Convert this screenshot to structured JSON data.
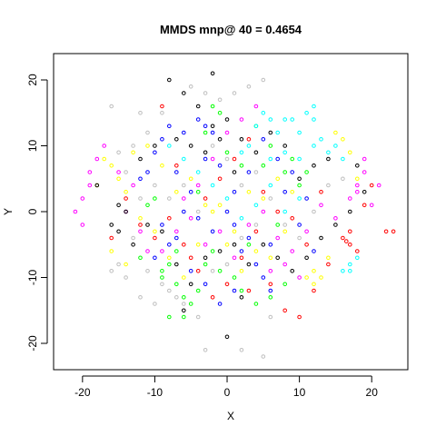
{
  "chart_data": {
    "type": "scatter",
    "title": "MMDS mnp@ 40 = 0.4654",
    "xlabel": "X",
    "ylabel": "Y",
    "xlim": [
      -24,
      25
    ],
    "ylim": [
      -24,
      24
    ],
    "xticks": [
      -20,
      -10,
      0,
      10,
      20
    ],
    "yticks": [
      -20,
      -10,
      0,
      10,
      20
    ],
    "xtick_labels": [
      "-20",
      "-10",
      "0",
      "10",
      "20"
    ],
    "ytick_labels": [
      "-20",
      "-10",
      "0",
      "10",
      "20"
    ],
    "marker": "open-circle",
    "grid": false,
    "legend": "none",
    "series": [
      {
        "color": "#ff0000",
        "points": [
          [
            -12,
            -2
          ],
          [
            -10,
            -4
          ],
          [
            -8,
            -1
          ],
          [
            -6,
            -5
          ],
          [
            -4,
            -9
          ],
          [
            -2,
            -13
          ],
          [
            0,
            -11
          ],
          [
            2,
            -7
          ],
          [
            4,
            -3
          ],
          [
            6,
            -11
          ],
          [
            8,
            -15
          ],
          [
            10,
            -16
          ],
          [
            12,
            -12
          ],
          [
            14,
            -8
          ],
          [
            16,
            -4
          ],
          [
            17,
            -5
          ],
          [
            18,
            -6
          ],
          [
            17,
            -3
          ],
          [
            16.5,
            -4.5
          ],
          [
            22,
            -3
          ],
          [
            23,
            -3
          ],
          [
            -3,
            2
          ],
          [
            -1,
            5
          ],
          [
            1,
            8
          ],
          [
            3,
            11
          ],
          [
            5,
            3
          ],
          [
            7,
            0
          ],
          [
            9,
            -1
          ],
          [
            -14,
            2
          ],
          [
            -16,
            -4
          ],
          [
            -7,
            7
          ],
          [
            -9,
            16
          ],
          [
            -5,
            -7
          ],
          [
            3,
            -12
          ],
          [
            11,
            -5
          ],
          [
            13,
            3
          ],
          [
            19,
            1
          ],
          [
            20,
            4
          ]
        ]
      },
      {
        "color": "#00ff00",
        "points": [
          [
            -8,
            -8
          ],
          [
            -9,
            -9
          ],
          [
            -7,
            -11
          ],
          [
            -6,
            -13
          ],
          [
            -5,
            -14
          ],
          [
            -8,
            -16
          ],
          [
            -6,
            -16
          ],
          [
            -4,
            -12
          ],
          [
            -3,
            -8
          ],
          [
            -2,
            -6
          ],
          [
            -1,
            -9
          ],
          [
            1,
            -10
          ],
          [
            2,
            -12
          ],
          [
            4,
            -14
          ],
          [
            6,
            -13
          ],
          [
            8,
            -11
          ],
          [
            -2,
            16
          ],
          [
            -1,
            15
          ],
          [
            -3,
            12
          ],
          [
            0,
            9
          ],
          [
            2,
            7
          ],
          [
            4,
            13
          ],
          [
            6,
            10
          ],
          [
            8,
            6
          ],
          [
            10,
            4
          ],
          [
            -10,
            2
          ],
          [
            -12,
            -7
          ],
          [
            -11,
            1
          ],
          [
            -4,
            3
          ],
          [
            3,
            -5
          ],
          [
            7,
            -2
          ],
          [
            9,
            8
          ],
          [
            11,
            6
          ],
          [
            5,
            7
          ],
          [
            -7,
            -6
          ],
          [
            -9,
            -10
          ]
        ]
      },
      {
        "color": "#0000ff",
        "points": [
          [
            -4,
            14
          ],
          [
            -3,
            13
          ],
          [
            -2,
            12
          ],
          [
            -6,
            12
          ],
          [
            -8,
            13
          ],
          [
            -9,
            11
          ],
          [
            -11,
            6
          ],
          [
            -12,
            5
          ],
          [
            -10,
            9
          ],
          [
            -7,
            6
          ],
          [
            -5,
            3
          ],
          [
            -6,
            0
          ],
          [
            -4,
            -1
          ],
          [
            -2,
            -3
          ],
          [
            0,
            0
          ],
          [
            1,
            -2
          ],
          [
            2,
            -6
          ],
          [
            3,
            -4
          ],
          [
            4,
            -8
          ],
          [
            5,
            -10
          ],
          [
            6,
            -12
          ],
          [
            -1,
            -14
          ],
          [
            1,
            -12
          ],
          [
            -3,
            -11
          ],
          [
            -5,
            -9
          ],
          [
            -7,
            -4
          ],
          [
            -9,
            -2
          ],
          [
            8,
            3
          ],
          [
            10,
            -2
          ],
          [
            12,
            -6
          ],
          [
            11,
            2
          ],
          [
            9,
            6
          ],
          [
            7,
            8
          ],
          [
            5,
            11
          ],
          [
            3,
            6
          ],
          [
            1,
            3
          ],
          [
            -1,
            7
          ],
          [
            -3,
            8
          ],
          [
            -8,
            -5
          ],
          [
            -10,
            -7
          ],
          [
            6,
            -5
          ]
        ]
      },
      {
        "color": "#00ffff",
        "points": [
          [
            5,
            15
          ],
          [
            6,
            14
          ],
          [
            7,
            12
          ],
          [
            8,
            14
          ],
          [
            9,
            14
          ],
          [
            10,
            12
          ],
          [
            11,
            15
          ],
          [
            12,
            16
          ],
          [
            12,
            14
          ],
          [
            13,
            11
          ],
          [
            14,
            9
          ],
          [
            15,
            10
          ],
          [
            16,
            8
          ],
          [
            4,
            13
          ],
          [
            3,
            10
          ],
          [
            2,
            9
          ],
          [
            6,
            8
          ],
          [
            8,
            9
          ],
          [
            10,
            8
          ],
          [
            12,
            10
          ],
          [
            17,
            -8
          ],
          [
            17,
            -9
          ],
          [
            18,
            -7
          ],
          [
            16,
            -9
          ],
          [
            -2,
            4
          ],
          [
            -4,
            6
          ],
          [
            0,
            2
          ],
          [
            2,
            -1
          ],
          [
            4,
            1
          ],
          [
            6,
            4
          ],
          [
            8,
            0
          ],
          [
            10,
            2
          ],
          [
            -6,
            8
          ],
          [
            -8,
            10
          ]
        ]
      },
      {
        "color": "#ff00ff",
        "points": [
          [
            -21,
            0
          ],
          [
            -20,
            2
          ],
          [
            -19,
            4
          ],
          [
            -19,
            6
          ],
          [
            -18,
            8
          ],
          [
            -17,
            10
          ],
          [
            -20,
            -2
          ],
          [
            -13,
            4
          ],
          [
            -12,
            -3
          ],
          [
            -11,
            -6
          ],
          [
            -9,
            -6
          ],
          [
            -7,
            -3
          ],
          [
            -5,
            -1
          ],
          [
            -3,
            -5
          ],
          [
            -1,
            -3
          ],
          [
            1,
            -7
          ],
          [
            3,
            -2
          ],
          [
            5,
            0
          ],
          [
            7,
            -4
          ],
          [
            9,
            -6
          ],
          [
            11,
            -3
          ],
          [
            13,
            1
          ],
          [
            15,
            -1
          ],
          [
            17,
            2
          ],
          [
            18,
            4
          ],
          [
            19,
            6
          ],
          [
            19,
            8
          ],
          [
            18,
            3
          ],
          [
            20,
            1
          ],
          [
            21,
            4
          ],
          [
            8,
            -8
          ],
          [
            10,
            -10
          ],
          [
            6,
            -9
          ],
          [
            -6,
            2
          ],
          [
            -4,
            4
          ],
          [
            -2,
            8
          ],
          [
            0,
            12
          ],
          [
            2,
            14
          ],
          [
            4,
            16
          ],
          [
            -15,
            6
          ],
          [
            -14,
            0
          ]
        ]
      },
      {
        "color": "#ffff00",
        "points": [
          [
            -17,
            8
          ],
          [
            -16,
            7
          ],
          [
            -15,
            5
          ],
          [
            -14,
            3
          ],
          [
            -13,
            9
          ],
          [
            -11,
            10
          ],
          [
            -9,
            7
          ],
          [
            -7,
            3
          ],
          [
            -5,
            5
          ],
          [
            -3,
            1
          ],
          [
            -1,
            1
          ],
          [
            1,
            -3
          ],
          [
            3,
            3
          ],
          [
            5,
            2
          ],
          [
            7,
            5
          ],
          [
            9,
            3
          ],
          [
            11,
            -10
          ],
          [
            12,
            -9
          ],
          [
            12,
            -11
          ],
          [
            13,
            -10
          ],
          [
            14,
            -7
          ],
          [
            15,
            12
          ],
          [
            16,
            11
          ],
          [
            17,
            9
          ],
          [
            18,
            5
          ],
          [
            -12,
            -1
          ],
          [
            -10,
            -3
          ],
          [
            -8,
            -7
          ],
          [
            -6,
            -10
          ],
          [
            -4,
            -5
          ],
          [
            -2,
            0
          ],
          [
            0,
            -5
          ],
          [
            2,
            -9
          ],
          [
            4,
            -6
          ],
          [
            6,
            -7
          ],
          [
            8,
            -3
          ],
          [
            -18,
            4
          ],
          [
            -16,
            -6
          ],
          [
            -14,
            -8
          ]
        ]
      },
      {
        "color": "#000000",
        "points": [
          [
            -8,
            20
          ],
          [
            -6,
            18
          ],
          [
            -2,
            21
          ],
          [
            -4,
            16
          ],
          [
            -1,
            11
          ],
          [
            1,
            6
          ],
          [
            -3,
            9
          ],
          [
            -5,
            10
          ],
          [
            -7,
            11
          ],
          [
            -10,
            10
          ],
          [
            -12,
            8
          ],
          [
            -14,
            0
          ],
          [
            -16,
            -2
          ],
          [
            -15,
            -3
          ],
          [
            -13,
            -5
          ],
          [
            -11,
            -2
          ],
          [
            -9,
            -3
          ],
          [
            -7,
            -8
          ],
          [
            -5,
            -11
          ],
          [
            -3,
            -7
          ],
          [
            -1,
            -6
          ],
          [
            1,
            -5
          ],
          [
            3,
            -8
          ],
          [
            5,
            -5
          ],
          [
            7,
            -7
          ],
          [
            9,
            -9
          ],
          [
            11,
            -7
          ],
          [
            13,
            -4
          ],
          [
            15,
            -2
          ],
          [
            17,
            0
          ],
          [
            18,
            7
          ],
          [
            19,
            3
          ],
          [
            14,
            8
          ],
          [
            12,
            7
          ],
          [
            10,
            5
          ],
          [
            8,
            10
          ],
          [
            6,
            12
          ],
          [
            4,
            9
          ],
          [
            2,
            11
          ],
          [
            0,
            14
          ],
          [
            -2,
            13
          ],
          [
            0,
            -19
          ],
          [
            2,
            -13
          ],
          [
            -6,
            -15
          ],
          [
            -18,
            4
          ],
          [
            -15,
            1
          ]
        ]
      },
      {
        "color": "#bebebe",
        "points": [
          [
            -16,
            16
          ],
          [
            -12,
            15
          ],
          [
            -9,
            15
          ],
          [
            -11,
            12
          ],
          [
            -13,
            10
          ],
          [
            -5,
            19
          ],
          [
            -1,
            17
          ],
          [
            1,
            18
          ],
          [
            3,
            19
          ],
          [
            5,
            20
          ],
          [
            -3,
            18
          ],
          [
            -15,
            -8
          ],
          [
            -16,
            -9
          ],
          [
            -14,
            -10
          ],
          [
            -12,
            -13
          ],
          [
            -10,
            -14
          ],
          [
            -8,
            -12
          ],
          [
            -6,
            -14
          ],
          [
            -4,
            -16
          ],
          [
            -3,
            -21
          ],
          [
            2,
            -21
          ],
          [
            5,
            -22
          ],
          [
            6,
            -16
          ],
          [
            -13,
            -4
          ],
          [
            -11,
            -9
          ],
          [
            -9,
            -11
          ],
          [
            -7,
            -13
          ],
          [
            -2,
            -9
          ],
          [
            0,
            -8
          ],
          [
            2,
            -4
          ],
          [
            4,
            -2
          ],
          [
            -2,
            10
          ],
          [
            0,
            8
          ],
          [
            2,
            4
          ],
          [
            4,
            6
          ],
          [
            6,
            2
          ],
          [
            8,
            -2
          ],
          [
            10,
            -4
          ],
          [
            12,
            0
          ],
          [
            14,
            4
          ],
          [
            16,
            5
          ],
          [
            -10,
            4
          ],
          [
            -8,
            2
          ],
          [
            -6,
            4
          ],
          [
            -4,
            0
          ],
          [
            -12,
            2
          ],
          [
            -14,
            6
          ],
          [
            -15,
            9
          ]
        ]
      }
    ]
  }
}
